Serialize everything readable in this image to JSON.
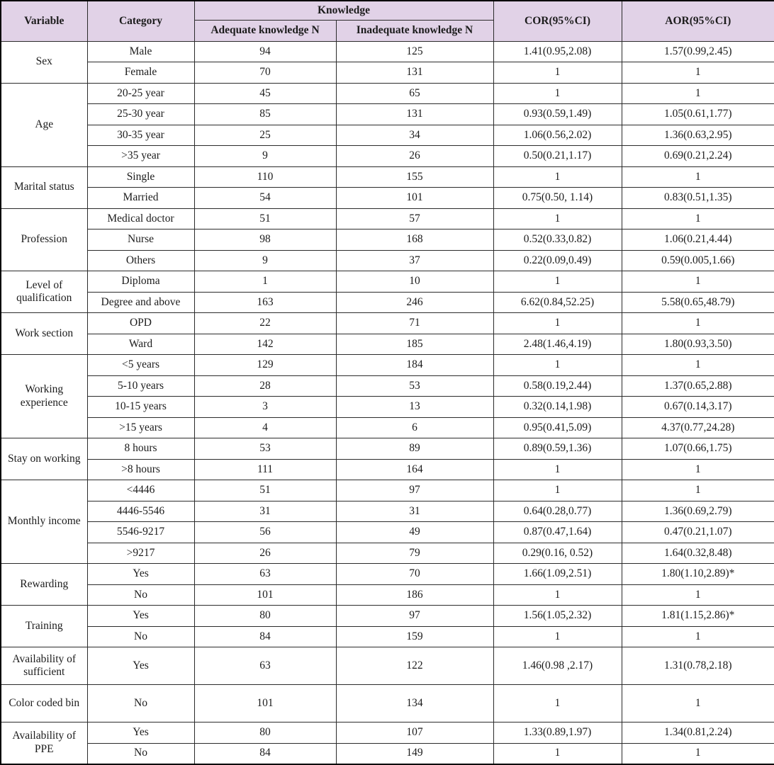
{
  "table": {
    "header": {
      "variable": "Variable",
      "category": "Category",
      "knowledge": "Knowledge",
      "adequate": "Adequate knowledge N",
      "inadequate": "Inadequate knowledge N",
      "cor": "COR(95%CI)",
      "aor": "AOR(95%CI)"
    },
    "header_bg": "#e1d2e7",
    "groups": [
      {
        "variable": "Sex",
        "rows": [
          {
            "category": "Male",
            "adequate": "94",
            "inadequate": "125",
            "cor": "1.41(0.95,2.08)",
            "aor": "1.57(0.99,2.45)"
          },
          {
            "category": "Female",
            "adequate": "70",
            "inadequate": "131",
            "cor": "1",
            "aor": "1"
          }
        ]
      },
      {
        "variable": "Age",
        "rows": [
          {
            "category": "20-25  year",
            "adequate": "45",
            "inadequate": "65",
            "cor": "1",
            "aor": "1"
          },
          {
            "category": "25-30 year",
            "adequate": "85",
            "inadequate": "131",
            "cor": "0.93(0.59,1.49)",
            "aor": "1.05(0.61,1.77)"
          },
          {
            "category": "30-35 year",
            "adequate": "25",
            "inadequate": "34",
            "cor": "1.06(0.56,2.02)",
            "aor": "1.36(0.63,2.95)"
          },
          {
            "category": ">35 year",
            "adequate": "9",
            "inadequate": "26",
            "cor": "0.50(0.21,1.17)",
            "aor": "0.69(0.21,2.24)"
          }
        ]
      },
      {
        "variable": "Marital status",
        "rows": [
          {
            "category": "Single",
            "adequate": "110",
            "inadequate": "155",
            "cor": "1",
            "aor": "1"
          },
          {
            "category": "Married",
            "adequate": "54",
            "inadequate": "101",
            "cor": "0.75(0.50, 1.14)",
            "aor": "0.83(0.51,1.35)"
          }
        ]
      },
      {
        "variable": "Profession",
        "rows": [
          {
            "category": "Medical doctor",
            "adequate": "51",
            "inadequate": "57",
            "cor": "1",
            "aor": "1"
          },
          {
            "category": "Nurse",
            "adequate": "98",
            "inadequate": "168",
            "cor": "0.52(0.33,0.82)",
            "aor": "1.06(0.21,4.44)"
          },
          {
            "category": "Others",
            "adequate": "9",
            "inadequate": "37",
            "cor": "0.22(0.09,0.49)",
            "aor": "0.59(0.005,1.66)"
          }
        ]
      },
      {
        "variable": "Level of qualification",
        "rows": [
          {
            "category": "Diploma",
            "adequate": "1",
            "inadequate": "10",
            "cor": "1",
            "aor": "1"
          },
          {
            "category": "Degree and above",
            "adequate": "163",
            "inadequate": "246",
            "cor": "6.62(0.84,52.25)",
            "aor": "5.58(0.65,48.79)"
          }
        ]
      },
      {
        "variable": "Work section",
        "rows": [
          {
            "category": "OPD",
            "adequate": "22",
            "inadequate": "71",
            "cor": "1",
            "aor": "1"
          },
          {
            "category": "Ward",
            "adequate": "142",
            "inadequate": "185",
            "cor": "2.48(1.46,4.19)",
            "aor": "1.80(0.93,3.50)"
          }
        ]
      },
      {
        "variable": "Working experience",
        "rows": [
          {
            "category": "<5 years",
            "adequate": "129",
            "inadequate": "184",
            "cor": "1",
            "aor": "1"
          },
          {
            "category": "5-10 years",
            "adequate": "28",
            "inadequate": "53",
            "cor": "0.58(0.19,2.44)",
            "aor": "1.37(0.65,2.88)"
          },
          {
            "category": "10-15 years",
            "adequate": "3",
            "inadequate": "13",
            "cor": "0.32(0.14,1.98)",
            "aor": "0.67(0.14,3.17)"
          },
          {
            "category": ">15 years",
            "adequate": "4",
            "inadequate": "6",
            "cor": "0.95(0.41,5.09)",
            "aor": "4.37(0.77,24.28)"
          }
        ]
      },
      {
        "variable": "Stay on working",
        "rows": [
          {
            "category": "8 hours",
            "adequate": "53",
            "inadequate": "89",
            "cor": "0.89(0.59,1.36)",
            "aor": "1.07(0.66,1.75)"
          },
          {
            "category": ">8 hours",
            "adequate": "111",
            "inadequate": "164",
            "cor": "1",
            "aor": "1"
          }
        ]
      },
      {
        "variable": "Monthly income",
        "rows": [
          {
            "category": "<4446",
            "adequate": "51",
            "inadequate": "97",
            "cor": "1",
            "aor": "1"
          },
          {
            "category": "4446-5546",
            "adequate": "31",
            "inadequate": "31",
            "cor": "0.64(0.28,0.77)",
            "aor": "1.36(0.69,2.79)"
          },
          {
            "category": "5546-9217",
            "adequate": "56",
            "inadequate": "49",
            "cor": "0.87(0.47,1.64)",
            "aor": "0.47(0.21,1.07)"
          },
          {
            "category": ">9217",
            "adequate": "26",
            "inadequate": "79",
            "cor": "0.29(0.16, 0.52)",
            "aor": "1.64(0.32,8.48)"
          }
        ]
      },
      {
        "variable": "Rewarding",
        "rows": [
          {
            "category": "Yes",
            "adequate": "63",
            "inadequate": "70",
            "cor": "1.66(1.09,2.51)",
            "aor": "1.80(1.10,2.89)*"
          },
          {
            "category": "No",
            "adequate": "101",
            "inadequate": "186",
            "cor": "1",
            "aor": "1"
          }
        ]
      },
      {
        "variable": "Training",
        "rows": [
          {
            "category": "Yes",
            "adequate": "80",
            "inadequate": "97",
            "cor": "1.56(1.05,2.32)",
            "aor": "1.81(1.15,2.86)*"
          },
          {
            "category": "No",
            "adequate": "84",
            "inadequate": "159",
            "cor": "1",
            "aor": "1"
          }
        ]
      },
      {
        "variable": "Availability of sufficient",
        "rows": [
          {
            "category": "Yes",
            "adequate": "63",
            "inadequate": "122",
            "cor": "1.46(0.98 ,2.17)",
            "aor": "1.31(0.78,2.18)"
          }
        ]
      },
      {
        "variable": "Color coded bin",
        "rows": [
          {
            "category": "No",
            "adequate": "101",
            "inadequate": "134",
            "cor": "1",
            "aor": "1"
          }
        ]
      },
      {
        "variable": "Availability of PPE",
        "rows": [
          {
            "category": "Yes",
            "adequate": "80",
            "inadequate": "107",
            "cor": "1.33(0.89,1.97)",
            "aor": "1.34(0.81,2.24)"
          },
          {
            "category": "No",
            "adequate": "84",
            "inadequate": "149",
            "cor": "1",
            "aor": "1"
          }
        ]
      }
    ]
  }
}
